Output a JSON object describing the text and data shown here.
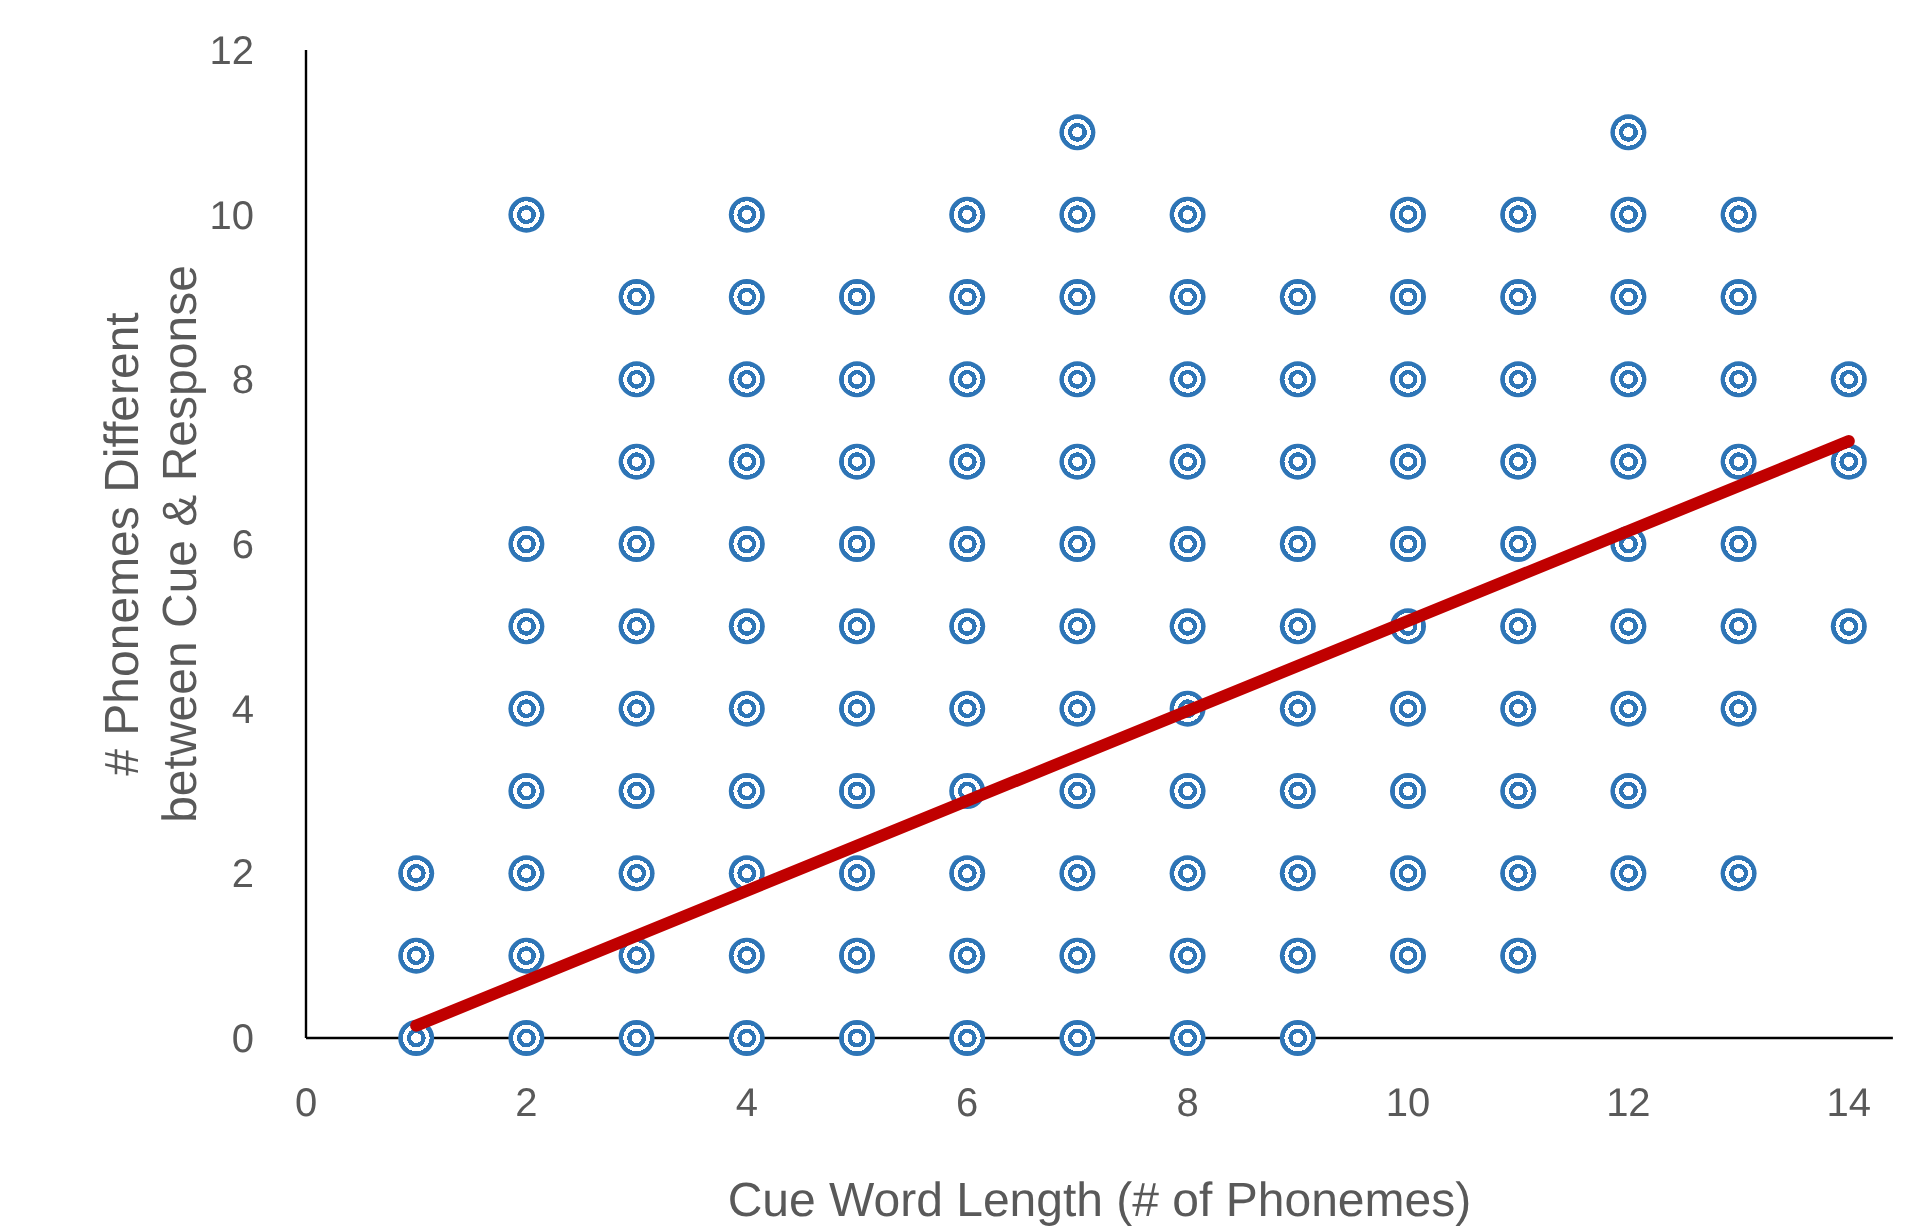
{
  "chart_data": {
    "type": "scatter",
    "xlabel": "Cue Word Length (# of Phonemes)",
    "ylabel": "# Phonemes Different\nbetween Cue & Response",
    "xlim": [
      0,
      14.4
    ],
    "ylim": [
      0,
      12
    ],
    "xticks": [
      0,
      2,
      4,
      6,
      8,
      10,
      12,
      14
    ],
    "yticks": [
      0,
      2,
      4,
      6,
      8,
      10,
      12
    ],
    "marker": "circle",
    "series": [
      {
        "color": "#2e75b6",
        "x": [
          1,
          1,
          1,
          2,
          2,
          2,
          2,
          2,
          2,
          2,
          2,
          3,
          3,
          3,
          3,
          3,
          3,
          3,
          3,
          3,
          3,
          4,
          4,
          4,
          4,
          4,
          4,
          4,
          4,
          4,
          4,
          4,
          5,
          5,
          5,
          5,
          5,
          5,
          5,
          5,
          5,
          5,
          6,
          6,
          6,
          6,
          6,
          6,
          6,
          6,
          6,
          6,
          6,
          7,
          7,
          7,
          7,
          7,
          7,
          7,
          7,
          7,
          7,
          7,
          7,
          8,
          8,
          8,
          8,
          8,
          8,
          8,
          8,
          8,
          8,
          8,
          9,
          9,
          9,
          9,
          9,
          9,
          9,
          9,
          9,
          9,
          10,
          10,
          10,
          10,
          10,
          10,
          10,
          10,
          10,
          10,
          11,
          11,
          11,
          11,
          11,
          11,
          11,
          11,
          11,
          11,
          12,
          12,
          12,
          12,
          12,
          12,
          12,
          12,
          12,
          12,
          13,
          13,
          13,
          13,
          13,
          13,
          13,
          13,
          14,
          14,
          14
        ],
        "values": [
          0,
          1,
          2,
          0,
          1,
          2,
          3,
          4,
          5,
          6,
          10,
          0,
          1,
          2,
          3,
          4,
          5,
          6,
          7,
          8,
          9,
          0,
          1,
          2,
          3,
          4,
          5,
          6,
          7,
          8,
          9,
          10,
          0,
          1,
          2,
          3,
          4,
          5,
          6,
          7,
          8,
          9,
          0,
          1,
          2,
          3,
          4,
          5,
          6,
          7,
          8,
          9,
          10,
          0,
          1,
          2,
          3,
          4,
          5,
          6,
          7,
          8,
          9,
          10,
          11,
          0,
          1,
          2,
          3,
          4,
          5,
          6,
          7,
          8,
          9,
          10,
          0,
          1,
          2,
          3,
          4,
          5,
          6,
          7,
          8,
          9,
          1,
          2,
          3,
          4,
          5,
          6,
          7,
          8,
          9,
          10,
          1,
          2,
          3,
          4,
          5,
          6,
          7,
          8,
          9,
          10,
          2,
          3,
          4,
          5,
          6,
          7,
          8,
          9,
          10,
          11,
          2,
          4,
          5,
          6,
          7,
          8,
          9,
          10,
          5,
          7,
          8
        ]
      },
      {
        "type": "line",
        "color": "#c00000",
        "marker": "none",
        "x": [
          1,
          14
        ],
        "values": [
          0.15,
          7.25
        ]
      }
    ]
  }
}
